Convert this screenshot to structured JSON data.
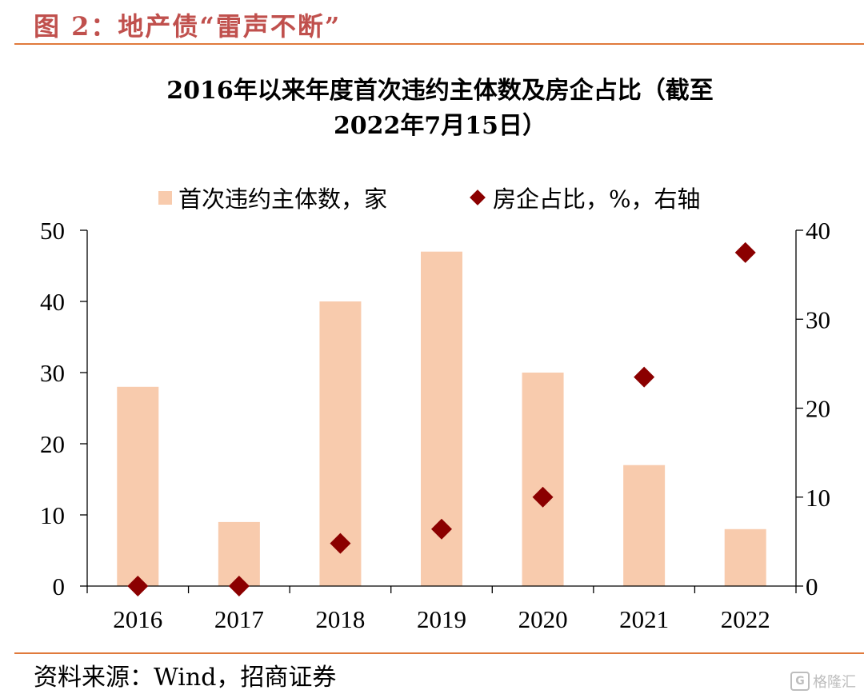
{
  "figure": {
    "label": "图 2：地产债“雷声不断”",
    "source": "资料来源：Wind，招商证券",
    "watermark": "格隆汇",
    "watermark_icon": "G"
  },
  "colors": {
    "accent": "#c0504d",
    "rule": "#e07a3c",
    "bar": "#f8cbad",
    "marker": "#8b0000"
  },
  "chart_data": {
    "type": "bar",
    "title_lines": [
      "2016年以来年度首次违约主体数及房企占比（截至",
      "2022年7月15日）"
    ],
    "categories": [
      "2016",
      "2017",
      "2018",
      "2019",
      "2020",
      "2021",
      "2022"
    ],
    "series": [
      {
        "name": "首次违约主体数，家",
        "type": "bar",
        "axis": "left",
        "values": [
          28,
          9,
          40,
          47,
          30,
          17,
          8
        ]
      },
      {
        "name": "房企占比，%，右轴",
        "type": "scatter",
        "marker": "diamond",
        "axis": "right",
        "values": [
          0,
          0,
          4.8,
          6.4,
          10.0,
          23.5,
          37.5
        ]
      }
    ],
    "y_left": {
      "min": 0,
      "max": 50,
      "ticks": [
        0,
        10,
        20,
        30,
        40,
        50
      ]
    },
    "y_right": {
      "min": 0,
      "max": 40,
      "ticks": [
        0,
        10,
        20,
        30,
        40
      ]
    },
    "grid": false,
    "legend_position": "top"
  }
}
